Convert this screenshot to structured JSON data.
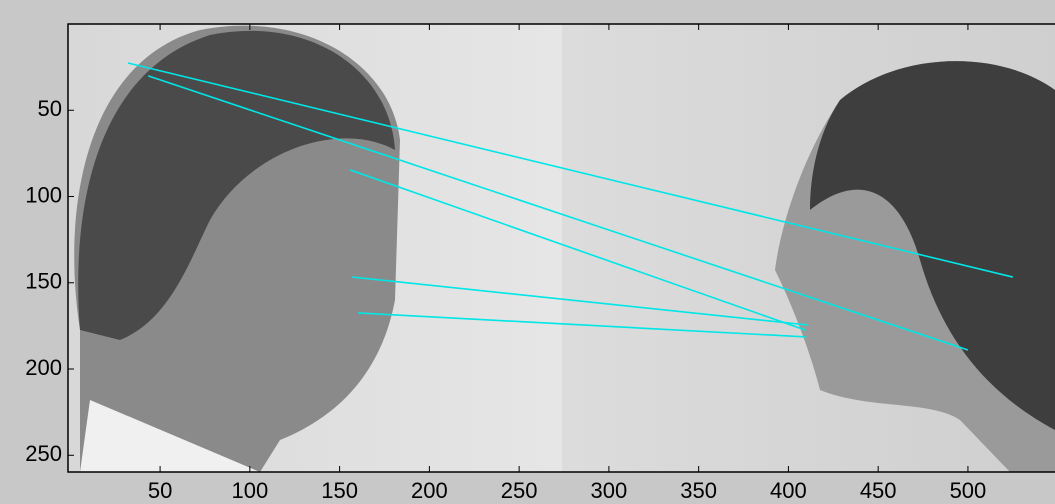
{
  "chart_data": {
    "type": "line",
    "series": [
      {
        "color": "#00e6e6",
        "x": [
          32.1,
          525
        ],
        "values": [
          22.6,
          146.7
        ]
      },
      {
        "color": "#00e6e6",
        "x": [
          43.4,
          500
        ],
        "values": [
          30.1,
          189
        ]
      },
      {
        "color": "#00e6e6",
        "x": [
          155.9,
          409.3
        ],
        "values": [
          84.6,
          177.4
        ]
      },
      {
        "color": "#00e6e6",
        "x": [
          157,
          411
        ],
        "values": [
          146.7,
          174.5
        ]
      },
      {
        "color": "#00e6e6",
        "x": [
          160.3,
          409.9
        ],
        "values": [
          167.5,
          181.4
        ]
      }
    ],
    "xlim": [
      -1.3,
      548.5
    ],
    "ylim": [
      0,
      259.7
    ],
    "xticks": [
      50,
      100,
      150,
      200,
      250,
      300,
      350,
      400,
      450,
      500
    ],
    "yticks": [
      50,
      100,
      150,
      200,
      250
    ],
    "y_reversed": true
  }
}
